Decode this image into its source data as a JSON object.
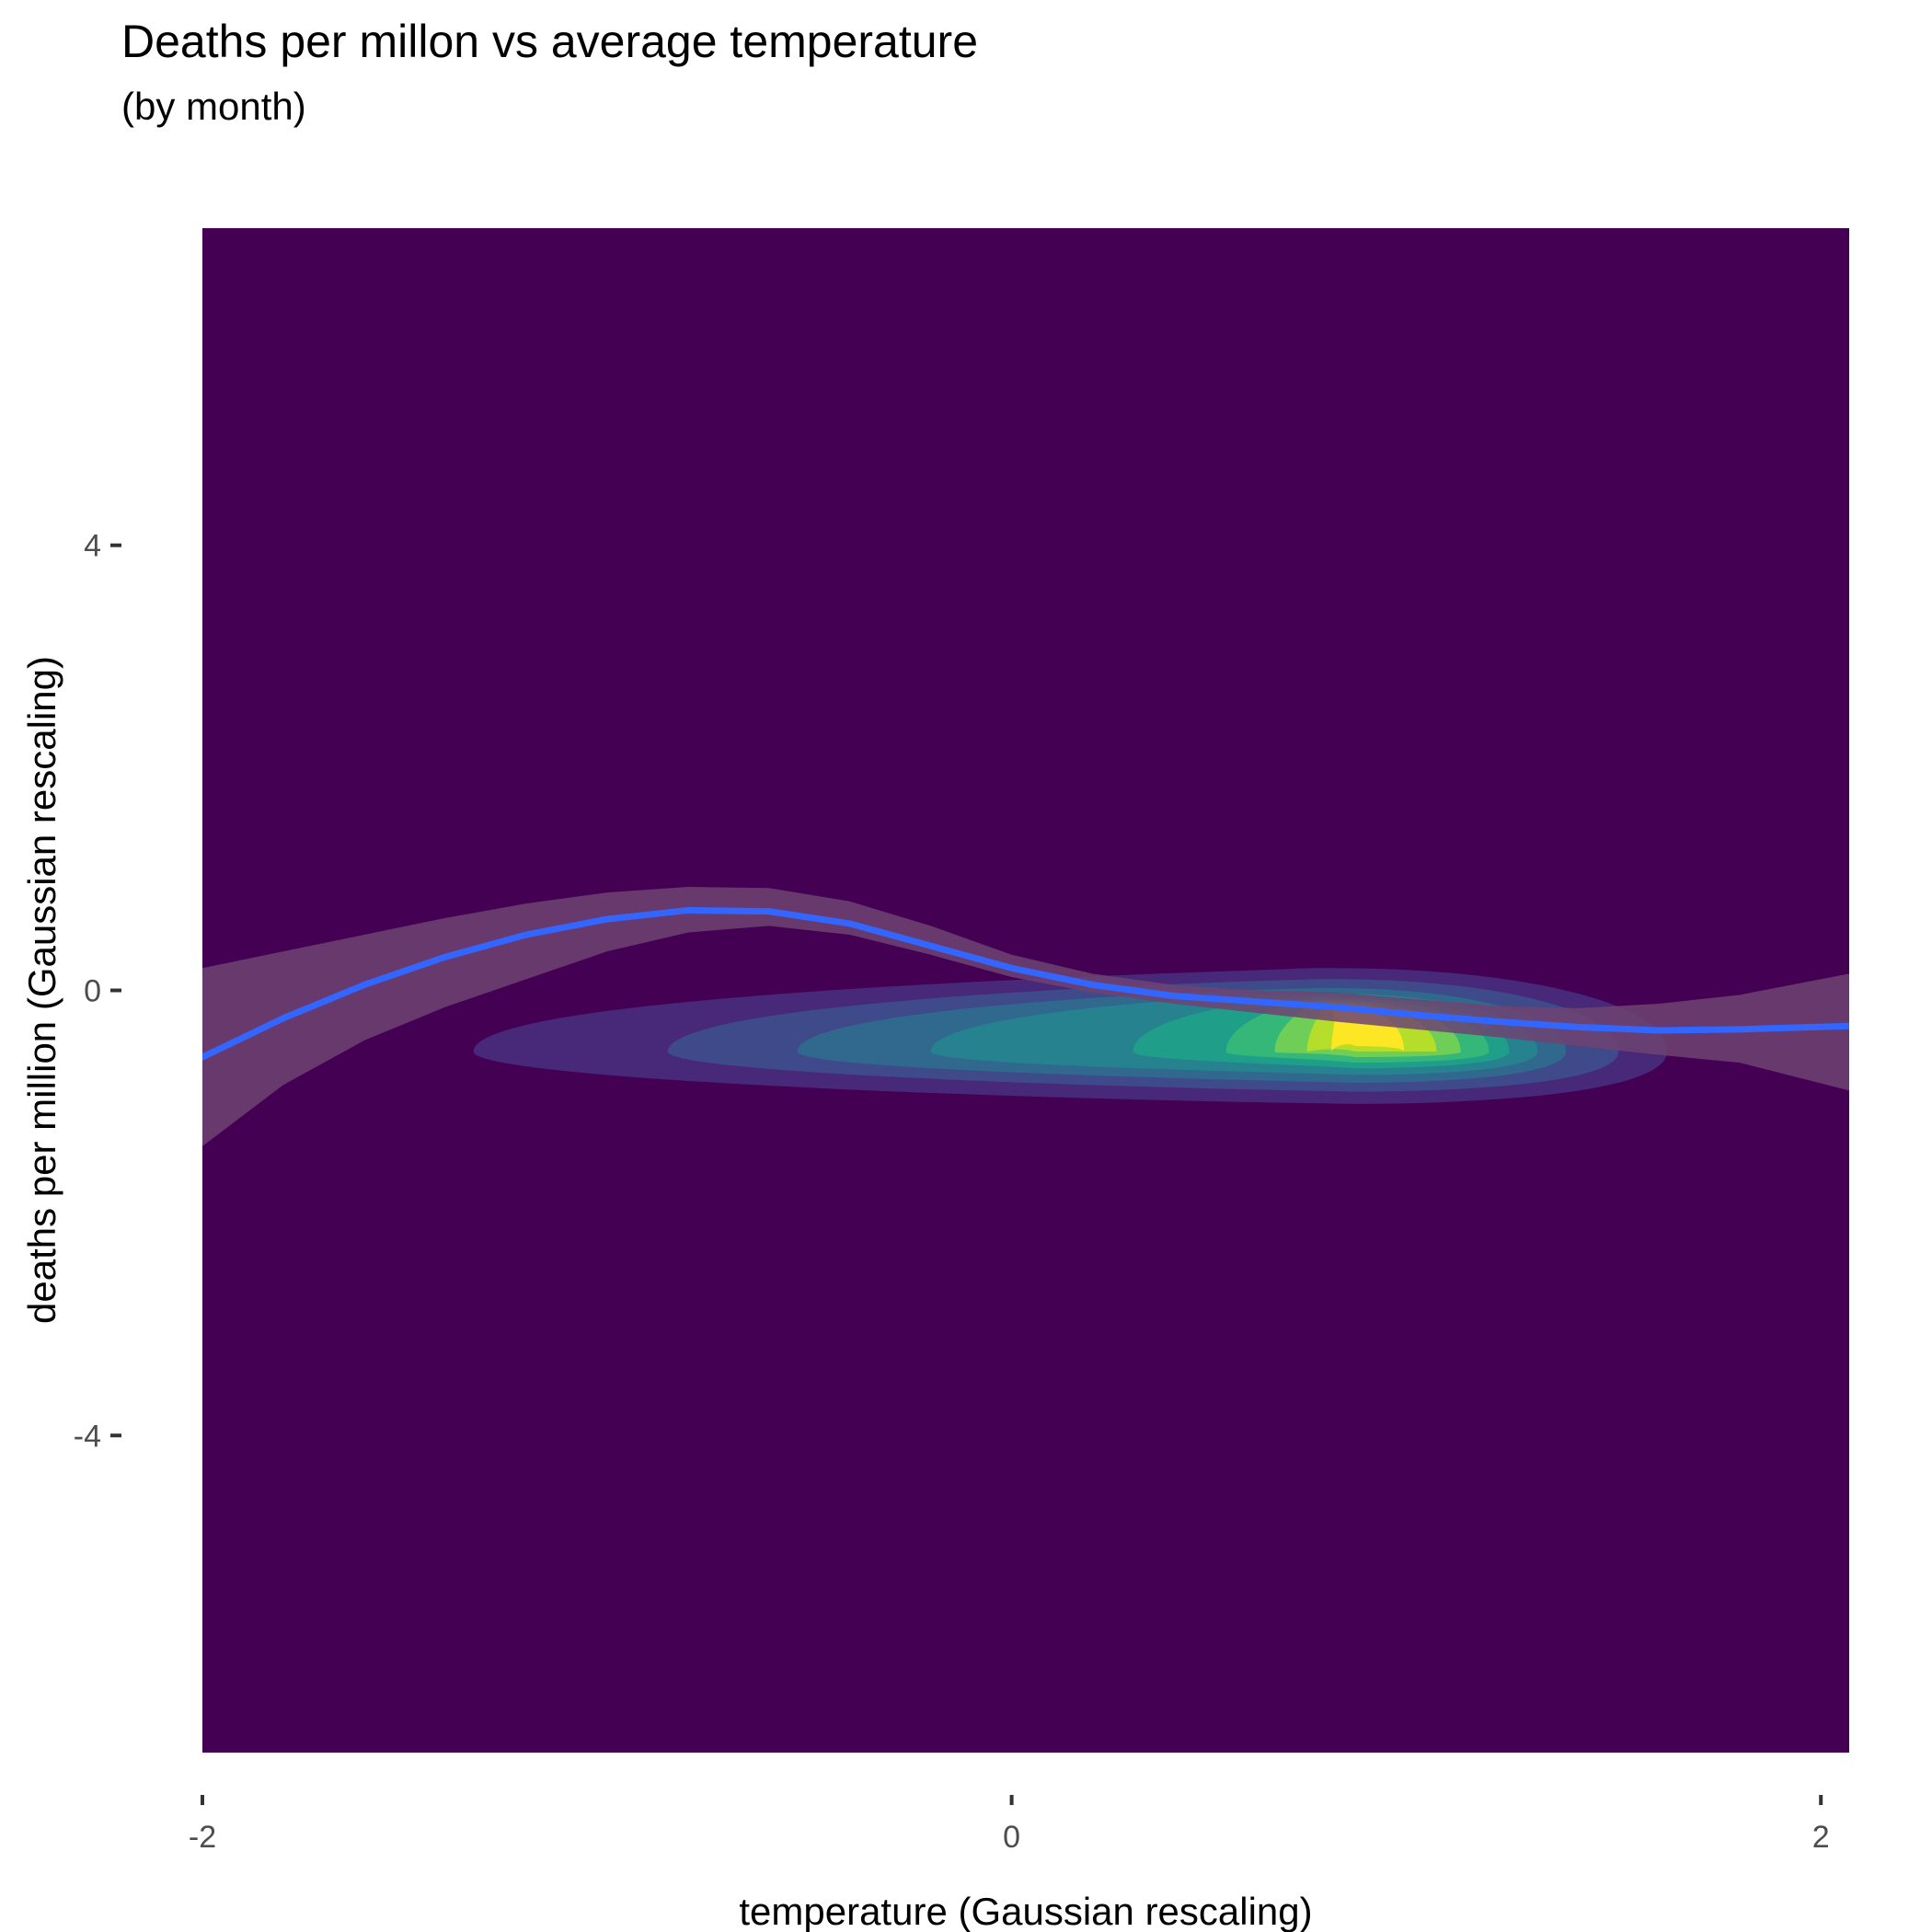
{
  "chart_data": {
    "type": "density2d_contour_with_smooth",
    "title": "Deaths per millon vs average temperature",
    "subtitle": "(by month)",
    "xlabel": "temperature (Gaussian rescaling)",
    "ylabel": "deaths per million (Gaussian rescaling)",
    "xlim": [
      -2.0,
      2.07
    ],
    "ylim": [
      -6.85,
      6.85
    ],
    "x_ticks": [
      -2,
      0,
      2
    ],
    "x_tick_labels": [
      "-2",
      "0",
      "2"
    ],
    "y_ticks": [
      -4,
      0,
      4
    ],
    "y_tick_labels": [
      "-4",
      "0",
      "4"
    ],
    "grid": false,
    "legend": "none",
    "colors": {
      "panel_background": "#440154",
      "smooth_line": "#3366ff",
      "ribbon": "#6e4372",
      "density_levels": [
        "#482878",
        "#3e4a89",
        "#31688e",
        "#26828e",
        "#1f9e89",
        "#35b779",
        "#6ece58",
        "#b5de2b",
        "#fde725"
      ]
    },
    "smooth_line": {
      "x": [
        -2.0,
        -1.8,
        -1.6,
        -1.4,
        -1.2,
        -1.0,
        -0.8,
        -0.6,
        -0.4,
        -0.2,
        0.0,
        0.2,
        0.4,
        0.6,
        0.8,
        1.0,
        1.2,
        1.4,
        1.6,
        1.8,
        2.07
      ],
      "y": [
        -0.6,
        -0.25,
        0.05,
        0.3,
        0.5,
        0.64,
        0.72,
        0.71,
        0.6,
        0.4,
        0.2,
        0.05,
        -0.05,
        -0.1,
        -0.15,
        -0.22,
        -0.28,
        -0.33,
        -0.36,
        -0.35,
        -0.32
      ],
      "ribbon_lower": [
        -1.4,
        -0.85,
        -0.45,
        -0.15,
        0.1,
        0.35,
        0.52,
        0.58,
        0.5,
        0.32,
        0.12,
        -0.02,
        -0.12,
        -0.2,
        -0.28,
        -0.35,
        -0.42,
        -0.5,
        -0.58,
        -0.65,
        -0.9
      ],
      "ribbon_upper": [
        0.2,
        0.35,
        0.5,
        0.65,
        0.78,
        0.88,
        0.93,
        0.92,
        0.8,
        0.58,
        0.32,
        0.15,
        0.05,
        0.0,
        -0.02,
        -0.08,
        -0.14,
        -0.16,
        -0.12,
        -0.04,
        0.15
      ]
    },
    "density_peak": {
      "x": 0.85,
      "y": -0.55
    }
  }
}
